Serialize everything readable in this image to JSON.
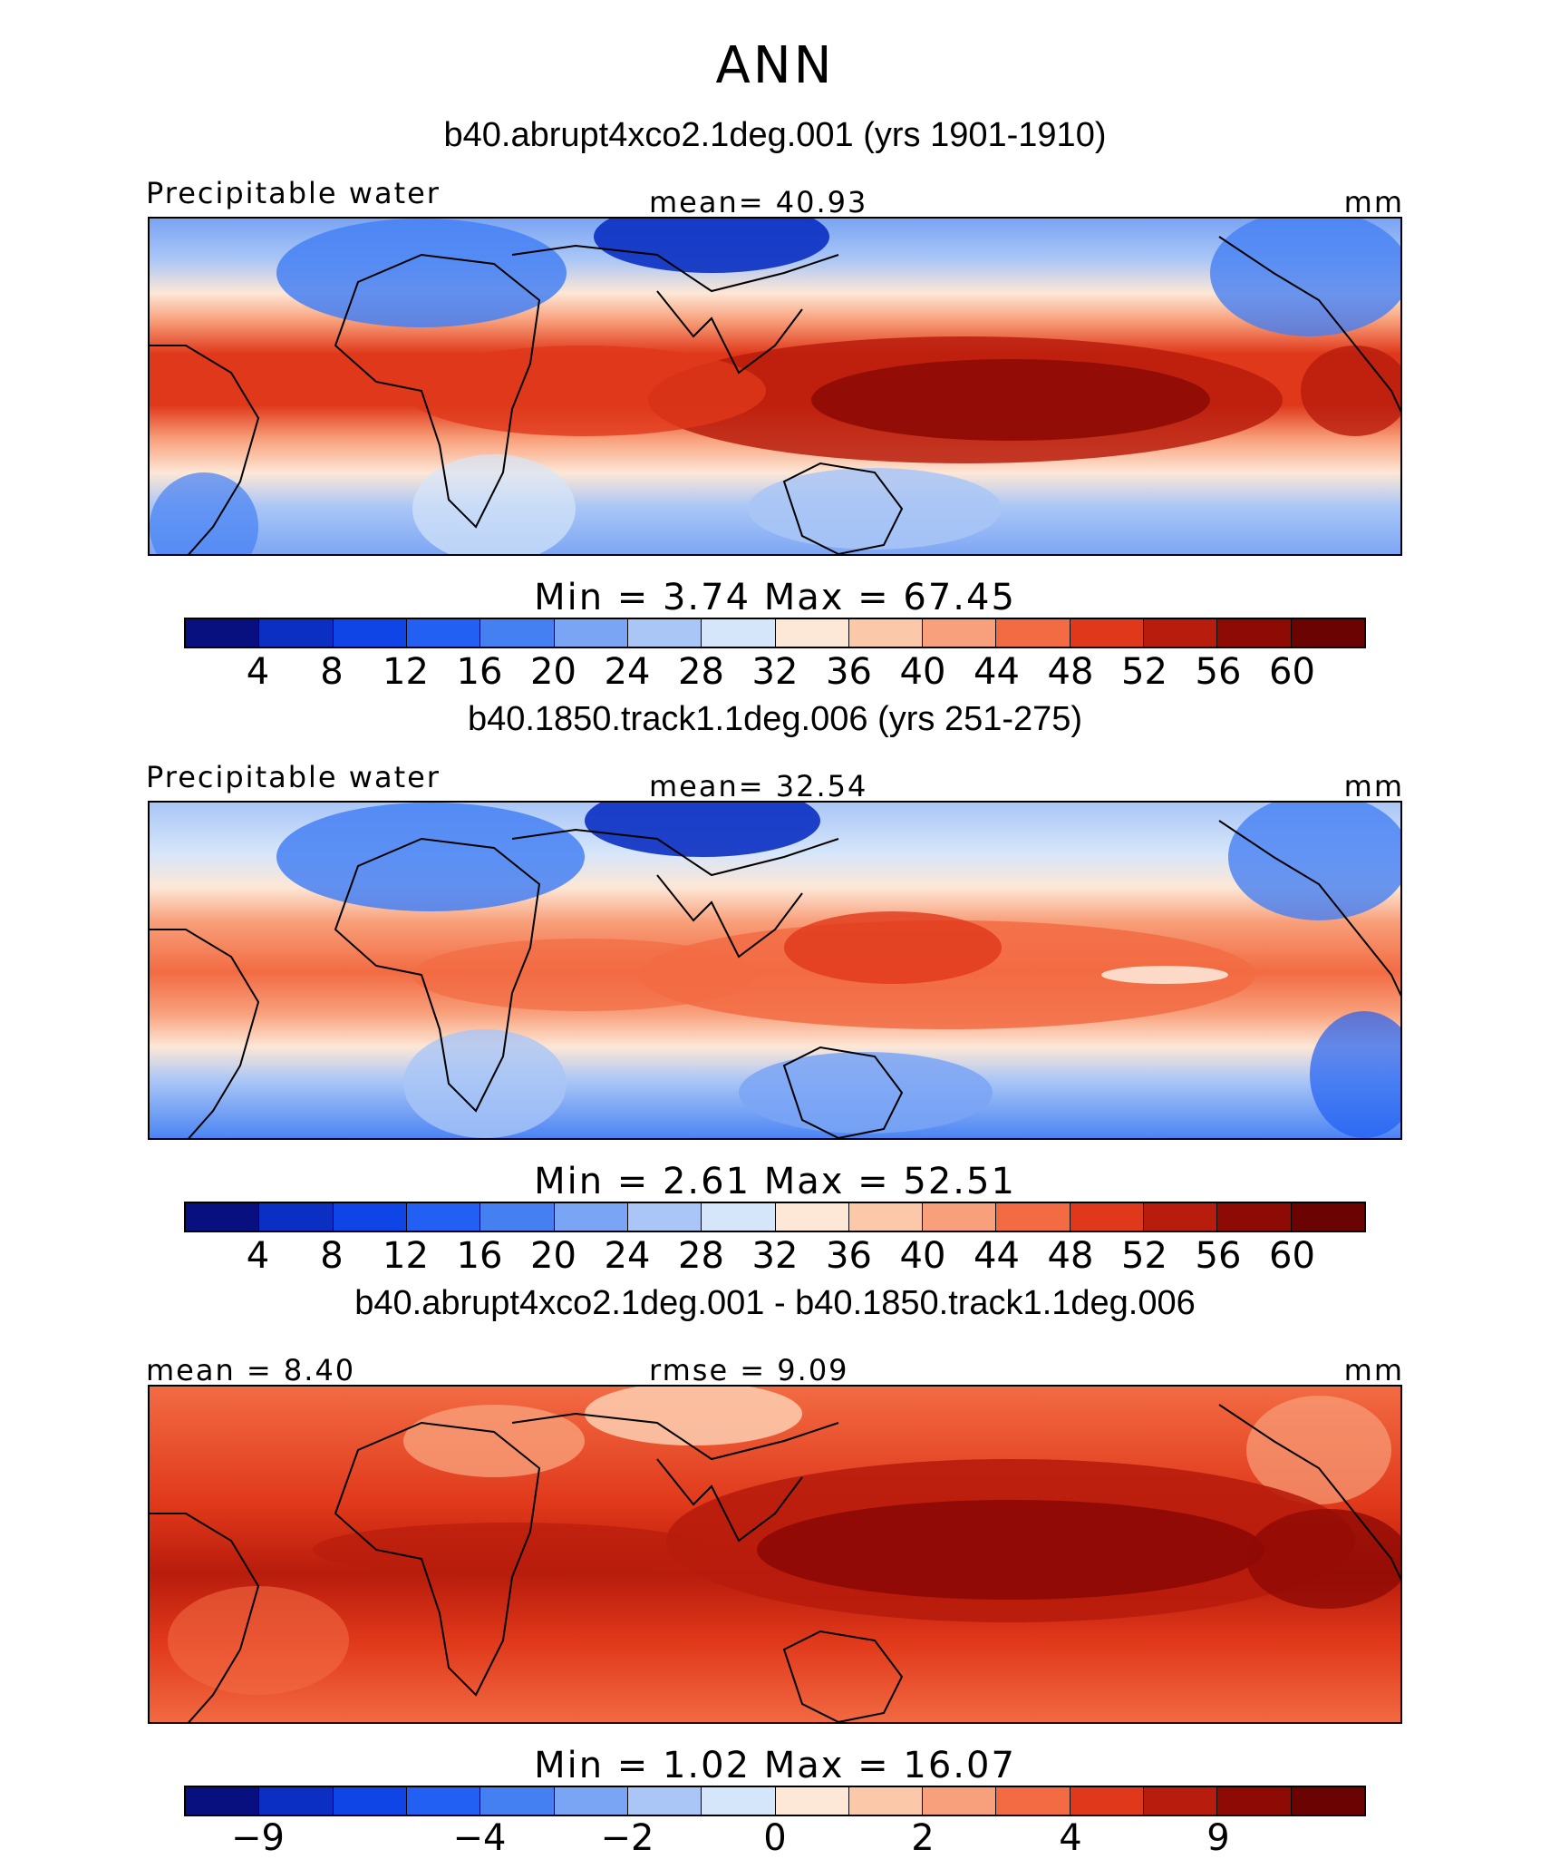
{
  "title": "ANN",
  "panels": [
    {
      "case_title": "b40.abrupt4xco2.1deg.001 (yrs 1901-1910)",
      "left_label": "Precipitable water",
      "center_label": "mean=   40.93",
      "unit": "mm",
      "min_max": "Min =     3.74  Max =   67.45",
      "colorbar_ticks": [
        "4",
        "8",
        "12",
        "16",
        "20",
        "24",
        "28",
        "32",
        "36",
        "40",
        "44",
        "48",
        "52",
        "56",
        "60"
      ]
    },
    {
      "case_title": "b40.1850.track1.1deg.006 (yrs 251-275)",
      "left_label": "Precipitable water",
      "center_label": "mean=   32.54",
      "unit": "mm",
      "min_max": "Min =     2.61  Max =   52.51",
      "colorbar_ticks": [
        "4",
        "8",
        "12",
        "16",
        "20",
        "24",
        "28",
        "32",
        "36",
        "40",
        "44",
        "48",
        "52",
        "56",
        "60"
      ]
    },
    {
      "case_title": "b40.abrupt4xco2.1deg.001 - b40.1850.track1.1deg.006",
      "left_label": "mean =    8.40",
      "center_label": "rmse =    9.09",
      "unit": "mm",
      "min_max": "Min =     1.02  Max =   16.07",
      "colorbar_ticks": [
        "−9",
        "−4",
        "−2",
        "0",
        "2",
        "4",
        "9"
      ]
    }
  ],
  "colorbar_colors": [
    "#08107f",
    "#0a2fc2",
    "#0f45e6",
    "#2160f2",
    "#4580f3",
    "#7aa4f4",
    "#a9c6f6",
    "#d6e6fa",
    "#fde7d6",
    "#fcc8aa",
    "#f8a07b",
    "#f26b43",
    "#e0381a",
    "#b81c0c",
    "#8e0a05",
    "#6b0302"
  ]
}
